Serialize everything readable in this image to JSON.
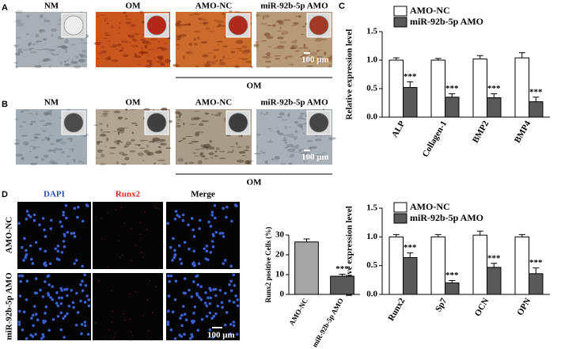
{
  "panel_labels": [
    "A",
    "B",
    "C",
    "D"
  ],
  "panel_a": {
    "labels": [
      "NM",
      "OM",
      "AMO-NC",
      "miR-92b-5p AMO"
    ],
    "scale_bar": "100 μm",
    "group_label": "OM"
  },
  "panel_b": {
    "labels": [
      "NM",
      "OM",
      "AMO-NC",
      "miR-92b-5p AMO"
    ],
    "scale_bar": "100 μm",
    "group_label": "OM"
  },
  "panel_d": {
    "columns": [
      "DAPI",
      "Runx2",
      "Merge"
    ],
    "rows": [
      "AMO-NC",
      "miR-92b-5p AMO"
    ],
    "scale_bar": "100 μm"
  },
  "chart_data": [
    {
      "type": "bar",
      "y_label": "Relative expression level",
      "categories": [
        "ALP",
        "Collagen-1",
        "BMP2",
        "BMP4"
      ],
      "series": [
        {
          "name": "AMO-NC",
          "color": "#ffffff",
          "values": [
            1.0,
            1.0,
            1.02,
            1.04
          ],
          "errors": [
            0.04,
            0.03,
            0.06,
            0.09
          ]
        },
        {
          "name": "miR-92b-5p AMO",
          "color": "#595959",
          "values": [
            0.52,
            0.35,
            0.34,
            0.27
          ],
          "errors": [
            0.1,
            0.06,
            0.07,
            0.08
          ],
          "annotations": [
            "***",
            "***",
            "***",
            "***"
          ]
        }
      ],
      "ylim": [
        0,
        1.5
      ],
      "yticks": [
        {
          "value": 0,
          "label": "0.0"
        },
        0.5,
        {
          "value": 1,
          "label": "1.0"
        },
        1.5
      ]
    },
    {
      "type": "bar",
      "y_label": "Relative expression level",
      "categories": [
        "Runx2",
        "Sp7",
        "OCN",
        "OPN"
      ],
      "series": [
        {
          "name": "AMO-NC",
          "color": "#ffffff",
          "values": [
            1.0,
            1.0,
            1.03,
            1.0
          ],
          "errors": [
            0.04,
            0.04,
            0.07,
            0.04
          ]
        },
        {
          "name": "miR-92b-5p AMO",
          "color": "#595959",
          "values": [
            0.64,
            0.2,
            0.47,
            0.36
          ],
          "errors": [
            0.08,
            0.04,
            0.07,
            0.1
          ],
          "annotations": [
            "***",
            "***",
            "***",
            "***"
          ]
        }
      ],
      "ylim": [
        0,
        1.5
      ],
      "yticks": [
        {
          "value": 0,
          "label": "0.0"
        },
        0.5,
        {
          "value": 1,
          "label": "1.0"
        },
        1.5
      ]
    },
    {
      "type": "bar",
      "y_label": "Runx2 positive Cells (%)",
      "categories": [
        "AMO-NC",
        "miR-92b-5p AMO"
      ],
      "values": [
        26.5,
        9.2
      ],
      "errors": [
        1.5,
        1.0
      ],
      "colors": [
        "#a6a6a6",
        "#595959"
      ],
      "annotations": [
        null,
        "***"
      ],
      "ylim": [
        0,
        30
      ],
      "yticks": [
        0,
        10,
        20,
        30
      ]
    }
  ]
}
